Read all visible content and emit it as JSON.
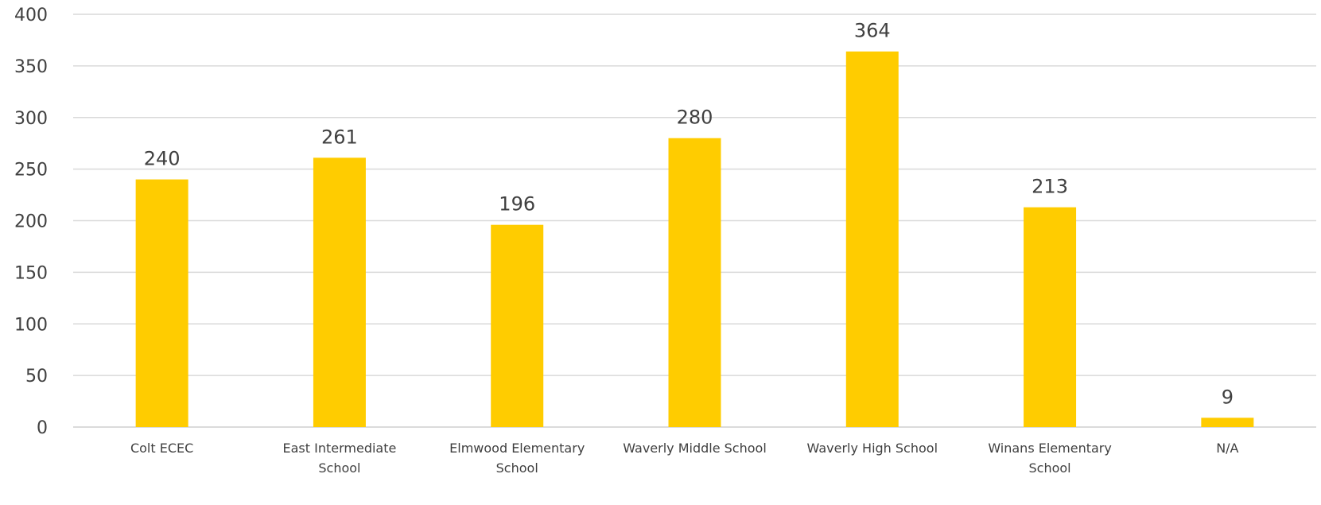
{
  "chart_data": {
    "type": "bar",
    "title": "",
    "xlabel": "",
    "ylabel": "",
    "categories": [
      [
        "Colt ECEC"
      ],
      [
        "East Intermediate",
        "School"
      ],
      [
        "Elmwood Elementary",
        "School"
      ],
      [
        "Waverly Middle School"
      ],
      [
        "Waverly High School"
      ],
      [
        "Winans Elementary",
        "School"
      ],
      [
        "N/A"
      ]
    ],
    "values": [
      240,
      261,
      196,
      280,
      364,
      213,
      9
    ],
    "ylim": [
      0,
      400
    ],
    "yticks": [
      0,
      50,
      100,
      150,
      200,
      250,
      300,
      350,
      400
    ],
    "grid": true,
    "legend": "none",
    "bar_color": "#FFCC00",
    "data_labels": true
  }
}
